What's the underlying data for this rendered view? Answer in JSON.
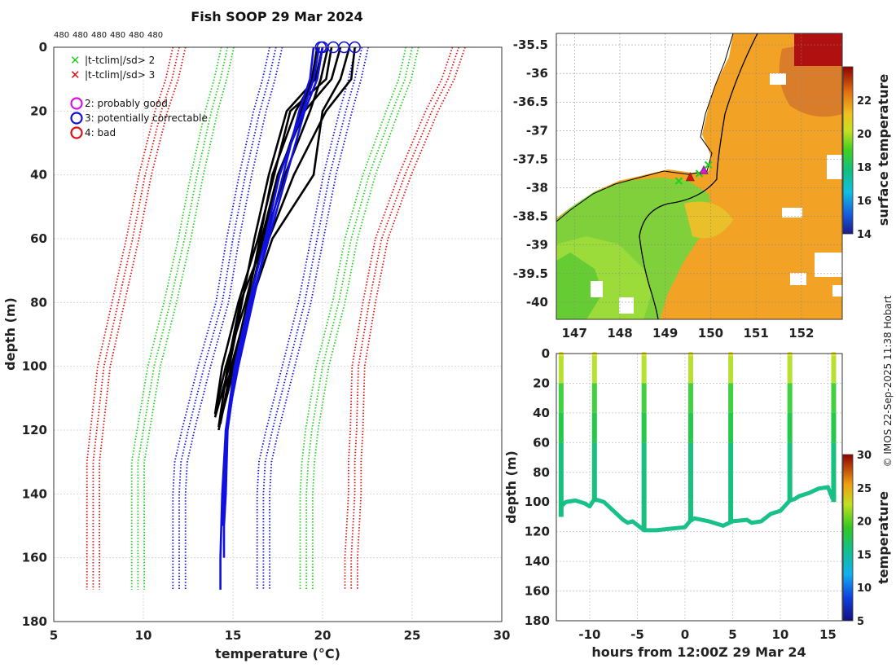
{
  "title": "Fish SOOP 29 Mar 2024",
  "count_labels": [
    "480",
    "480",
    "480",
    "480",
    "480",
    "480"
  ],
  "credit": "© IMOS 22-Sep-2025 11:38 Hobart",
  "legend": {
    "x_green": "|t-tclim|/sd> 2",
    "x_red": "|t-tclim|/sd> 3",
    "q2": "2: probably good",
    "q3": "3: potentially correctable",
    "q4": "4: bad",
    "colors": {
      "green": "#1fd11f",
      "red": "#e01010",
      "magenta": "#e010e0",
      "blue": "#1010e0"
    }
  },
  "chart_data": [
    {
      "name": "profile-plot",
      "type": "line",
      "title": "Fish SOOP 29 Mar 2024",
      "xlabel": "temperature (°C)",
      "ylabel": "depth (m)",
      "xlim": [
        5,
        30
      ],
      "ylim": [
        180,
        0
      ],
      "x_ticks": [
        "5",
        "10",
        "15",
        "20",
        "25",
        "30"
      ],
      "y_ticks": [
        "0",
        "20",
        "40",
        "60",
        "80",
        "100",
        "120",
        "140",
        "160",
        "180"
      ],
      "climatology": {
        "depths": [
          0,
          10,
          20,
          40,
          60,
          80,
          100,
          120,
          130,
          140,
          160,
          170
        ],
        "red_low": [
          12.0,
          11.6,
          11.0,
          10.1,
          9.4,
          8.6,
          7.8,
          7.4,
          7.2,
          7.2,
          7.2,
          7.2
        ],
        "green_low": [
          14.7,
          14.3,
          13.8,
          13.0,
          12.3,
          11.5,
          10.6,
          10.0,
          9.7,
          9.7,
          9.7,
          9.7
        ],
        "blue_low": [
          17.4,
          17.0,
          16.5,
          15.7,
          15.0,
          14.4,
          13.4,
          12.5,
          12.1,
          12.0,
          12.0,
          12.0
        ],
        "blue_high": [
          22.2,
          21.8,
          21.3,
          20.4,
          19.7,
          19.0,
          18.1,
          17.2,
          16.8,
          16.7,
          16.7,
          16.7
        ],
        "green_high": [
          25.0,
          24.6,
          23.9,
          22.6,
          21.6,
          20.9,
          20.0,
          19.4,
          19.2,
          19.1,
          19.1,
          19.1
        ],
        "red_high": [
          27.6,
          27.0,
          26.1,
          24.6,
          23.3,
          22.6,
          22.0,
          21.9,
          21.8,
          21.8,
          21.6,
          21.6
        ]
      },
      "profiles": [
        {
          "color": "black",
          "temps": [
            19.8,
            19.5,
            18.5,
            17.2,
            16.5,
            15.8,
            15.0,
            14.2
          ],
          "depths": [
            0,
            10,
            20,
            40,
            60,
            80,
            100,
            120
          ]
        },
        {
          "color": "black",
          "temps": [
            20.0,
            19.6,
            18.0,
            17.0,
            16.2,
            15.5,
            14.8,
            14.0
          ],
          "depths": [
            0,
            10,
            20,
            40,
            60,
            80,
            100,
            116
          ]
        },
        {
          "color": "black",
          "temps": [
            19.7,
            19.4,
            18.8,
            17.6,
            16.7,
            15.9,
            14.9,
            14.3
          ],
          "depths": [
            0,
            10,
            20,
            40,
            60,
            80,
            100,
            118
          ]
        },
        {
          "color": "black",
          "temps": [
            21.0,
            20.5,
            19.0,
            17.5,
            16.6,
            15.7,
            14.6,
            14.1
          ],
          "depths": [
            0,
            10,
            20,
            40,
            60,
            80,
            100,
            112
          ]
        },
        {
          "color": "black",
          "temps": [
            21.8,
            21.6,
            20.2,
            18.4,
            17.0,
            16.0,
            15.0,
            14.3
          ],
          "depths": [
            0,
            10,
            20,
            40,
            60,
            80,
            100,
            110
          ]
        },
        {
          "color": "black",
          "temps": [
            20.5,
            20.2,
            18.2,
            17.3,
            16.4,
            15.3,
            14.4,
            14.0
          ],
          "depths": [
            0,
            10,
            20,
            40,
            60,
            80,
            100,
            115
          ]
        },
        {
          "color": "black",
          "temps": [
            20.3,
            19.9,
            19.3,
            17.9,
            16.8,
            15.4,
            14.7,
            14.2
          ],
          "depths": [
            0,
            10,
            20,
            40,
            60,
            80,
            100,
            119
          ]
        },
        {
          "color": "black",
          "temps": [
            21.5,
            21.0,
            20.0,
            19.5,
            17.2,
            16.0,
            15.1,
            14.3
          ],
          "depths": [
            0,
            10,
            20,
            40,
            60,
            80,
            100,
            117
          ]
        },
        {
          "color": "blue",
          "temps": [
            19.5,
            19.3,
            18.7,
            17.8,
            16.9,
            16.1,
            15.3,
            14.6,
            14.4,
            14.3,
            14.3
          ],
          "depths": [
            0,
            10,
            20,
            40,
            60,
            80,
            100,
            120,
            140,
            160,
            170
          ]
        },
        {
          "color": "blue",
          "temps": [
            20.0,
            19.7,
            19.0,
            18.0,
            17.0,
            16.0,
            15.2,
            14.7,
            14.6,
            14.5,
            14.5
          ],
          "depths": [
            0,
            10,
            20,
            40,
            60,
            80,
            100,
            120,
            140,
            150,
            160
          ]
        },
        {
          "color": "blue",
          "temps": [
            19.8,
            19.5,
            18.9,
            17.6,
            16.8,
            15.9,
            15.1,
            14.6,
            14.5,
            14.4
          ],
          "depths": [
            0,
            10,
            20,
            40,
            60,
            80,
            100,
            120,
            140,
            150
          ]
        }
      ],
      "surface_markers": [
        {
          "temp": 20.0,
          "color": "blue"
        },
        {
          "temp": 20.6,
          "color": "blue"
        },
        {
          "temp": 21.2,
          "color": "blue"
        },
        {
          "temp": 21.8,
          "color": "blue"
        },
        {
          "temp": 19.9,
          "color": "blue"
        }
      ]
    },
    {
      "name": "sst-map",
      "type": "heatmap",
      "xlim": [
        146.6,
        152.9
      ],
      "ylim": [
        -40.3,
        -35.3
      ],
      "x_ticks": [
        "147",
        "148",
        "149",
        "150",
        "151",
        "152"
      ],
      "y_ticks": [
        "-35.5",
        "-36",
        "-36.5",
        "-37",
        "-37.5",
        "-38",
        "-38.5",
        "-39",
        "-39.5",
        "-40"
      ],
      "colorbar_label": "surface temperature",
      "colorbar_ticks": [
        "14",
        "16",
        "18",
        "20",
        "22"
      ],
      "colorbar_range": [
        14,
        24
      ],
      "track_points": [
        {
          "lon": 149.3,
          "lat": -37.88,
          "marker": "x",
          "color": "green"
        },
        {
          "lon": 149.55,
          "lat": -37.82,
          "marker": "triangle",
          "color": "red"
        },
        {
          "lon": 149.75,
          "lat": -37.75,
          "marker": "x",
          "color": "green"
        },
        {
          "lon": 149.85,
          "lat": -37.7,
          "marker": "triangle",
          "color": "magenta"
        },
        {
          "lon": 149.95,
          "lat": -37.6,
          "marker": "x",
          "color": "green"
        }
      ]
    },
    {
      "name": "time-depth-plot",
      "type": "scatter",
      "xlabel": "hours from 12:00Z 29 Mar 24",
      "ylabel": "depth (m)",
      "xlim": [
        -13.5,
        16.5
      ],
      "ylim": [
        180,
        0
      ],
      "x_ticks": [
        "-10",
        "-5",
        "0",
        "5",
        "10",
        "15"
      ],
      "y_ticks": [
        "0",
        "20",
        "40",
        "60",
        "80",
        "100",
        "120",
        "140",
        "160",
        "180"
      ],
      "colorbar_label": "temperature",
      "colorbar_ticks": [
        "5",
        "10",
        "15",
        "20",
        "25",
        "30"
      ],
      "colorbar_range": [
        5,
        30
      ],
      "bottom_track": {
        "hours": [
          -13.0,
          -12.5,
          -11.5,
          -10.5,
          -10.0,
          -9.5,
          -8.5,
          -7.5,
          -6.5,
          -6.0,
          -5.5,
          -4.3,
          -3.0,
          -1.5,
          0.0,
          0.5,
          1.0,
          2.5,
          4.0,
          5.0,
          6.5,
          7.0,
          8.0,
          9.0,
          10.0,
          11.0,
          11.5,
          12.0,
          13.0,
          14.0,
          15.0,
          15.5
        ],
        "depths": [
          103,
          100,
          99,
          101,
          103,
          98,
          100,
          106,
          112,
          114,
          113,
          119,
          119,
          118,
          117,
          113,
          111,
          113,
          116,
          113,
          112,
          114,
          113,
          108,
          106,
          99,
          98,
          96,
          94,
          91,
          90,
          98
        ]
      },
      "casts": [
        {
          "hour": -13.0,
          "bottom": 110
        },
        {
          "hour": -9.5,
          "bottom": 100
        },
        {
          "hour": -4.3,
          "bottom": 119
        },
        {
          "hour": 0.6,
          "bottom": 112
        },
        {
          "hour": 4.8,
          "bottom": 113
        },
        {
          "hour": 11.0,
          "bottom": 99
        },
        {
          "hour": 15.6,
          "bottom": 100
        }
      ]
    }
  ]
}
